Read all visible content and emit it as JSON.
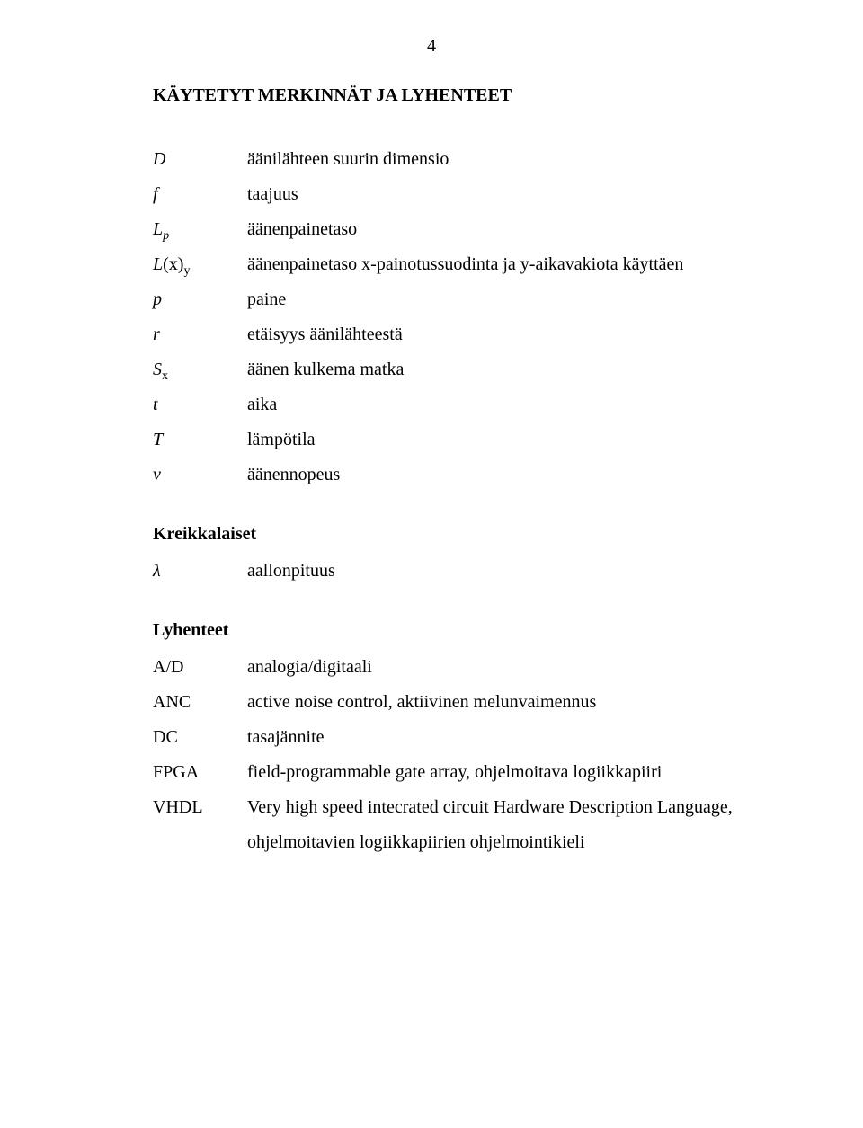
{
  "page_number": "4",
  "title": "KÄYTETYT MERKINNÄT JA LYHENTEET",
  "symbols": [
    {
      "sym_html": "<span class='italic'>D</span>",
      "def": "äänilähteen suurin dimensio"
    },
    {
      "sym_html": "<span class='italic'>f</span>",
      "def": "taajuus"
    },
    {
      "sym_html": "<span class='italic'>L<span class='subscript'>p</span></span>",
      "def": "äänenpainetaso"
    },
    {
      "sym_html": "<span class='italic'>L</span>(x)<span class='subscript'>y</span>",
      "def": "äänenpainetaso x-painotussuodinta ja y-aikavakiota käyttäen"
    },
    {
      "sym_html": "<span class='italic'>p</span>",
      "def": "paine"
    },
    {
      "sym_html": "<span class='italic'>r</span>",
      "def": "etäisyys äänilähteestä"
    },
    {
      "sym_html": "<span class='italic'>S</span><span class='subscript'>x</span>",
      "def": "äänen kulkema matka"
    },
    {
      "sym_html": "<span class='italic'>t</span>",
      "def": "aika"
    },
    {
      "sym_html": "<span class='italic'>T</span>",
      "def": "lämpötila"
    },
    {
      "sym_html": "<span class='italic'>v</span>",
      "def": "äänennopeus"
    }
  ],
  "greek_heading": "Kreikkalaiset",
  "greek": [
    {
      "sym_html": "<span class='italic'>λ</span>",
      "def": "aallonpituus"
    }
  ],
  "abbrev_heading": "Lyhenteet",
  "abbreviations": [
    {
      "sym": "A/D",
      "def": "analogia/digitaali"
    },
    {
      "sym": "ANC",
      "def": "active noise control, aktiivinen melunvaimennus"
    },
    {
      "sym": "DC",
      "def": "tasajännite"
    },
    {
      "sym": "FPGA",
      "def": "field-programmable gate array, ohjelmoitava logiikkapiiri"
    },
    {
      "sym": "VHDL",
      "def": "Very high speed intecrated circuit Hardware Description Language, ohjelmoitavien logiikkapiirien ohjelmointikieli"
    }
  ]
}
